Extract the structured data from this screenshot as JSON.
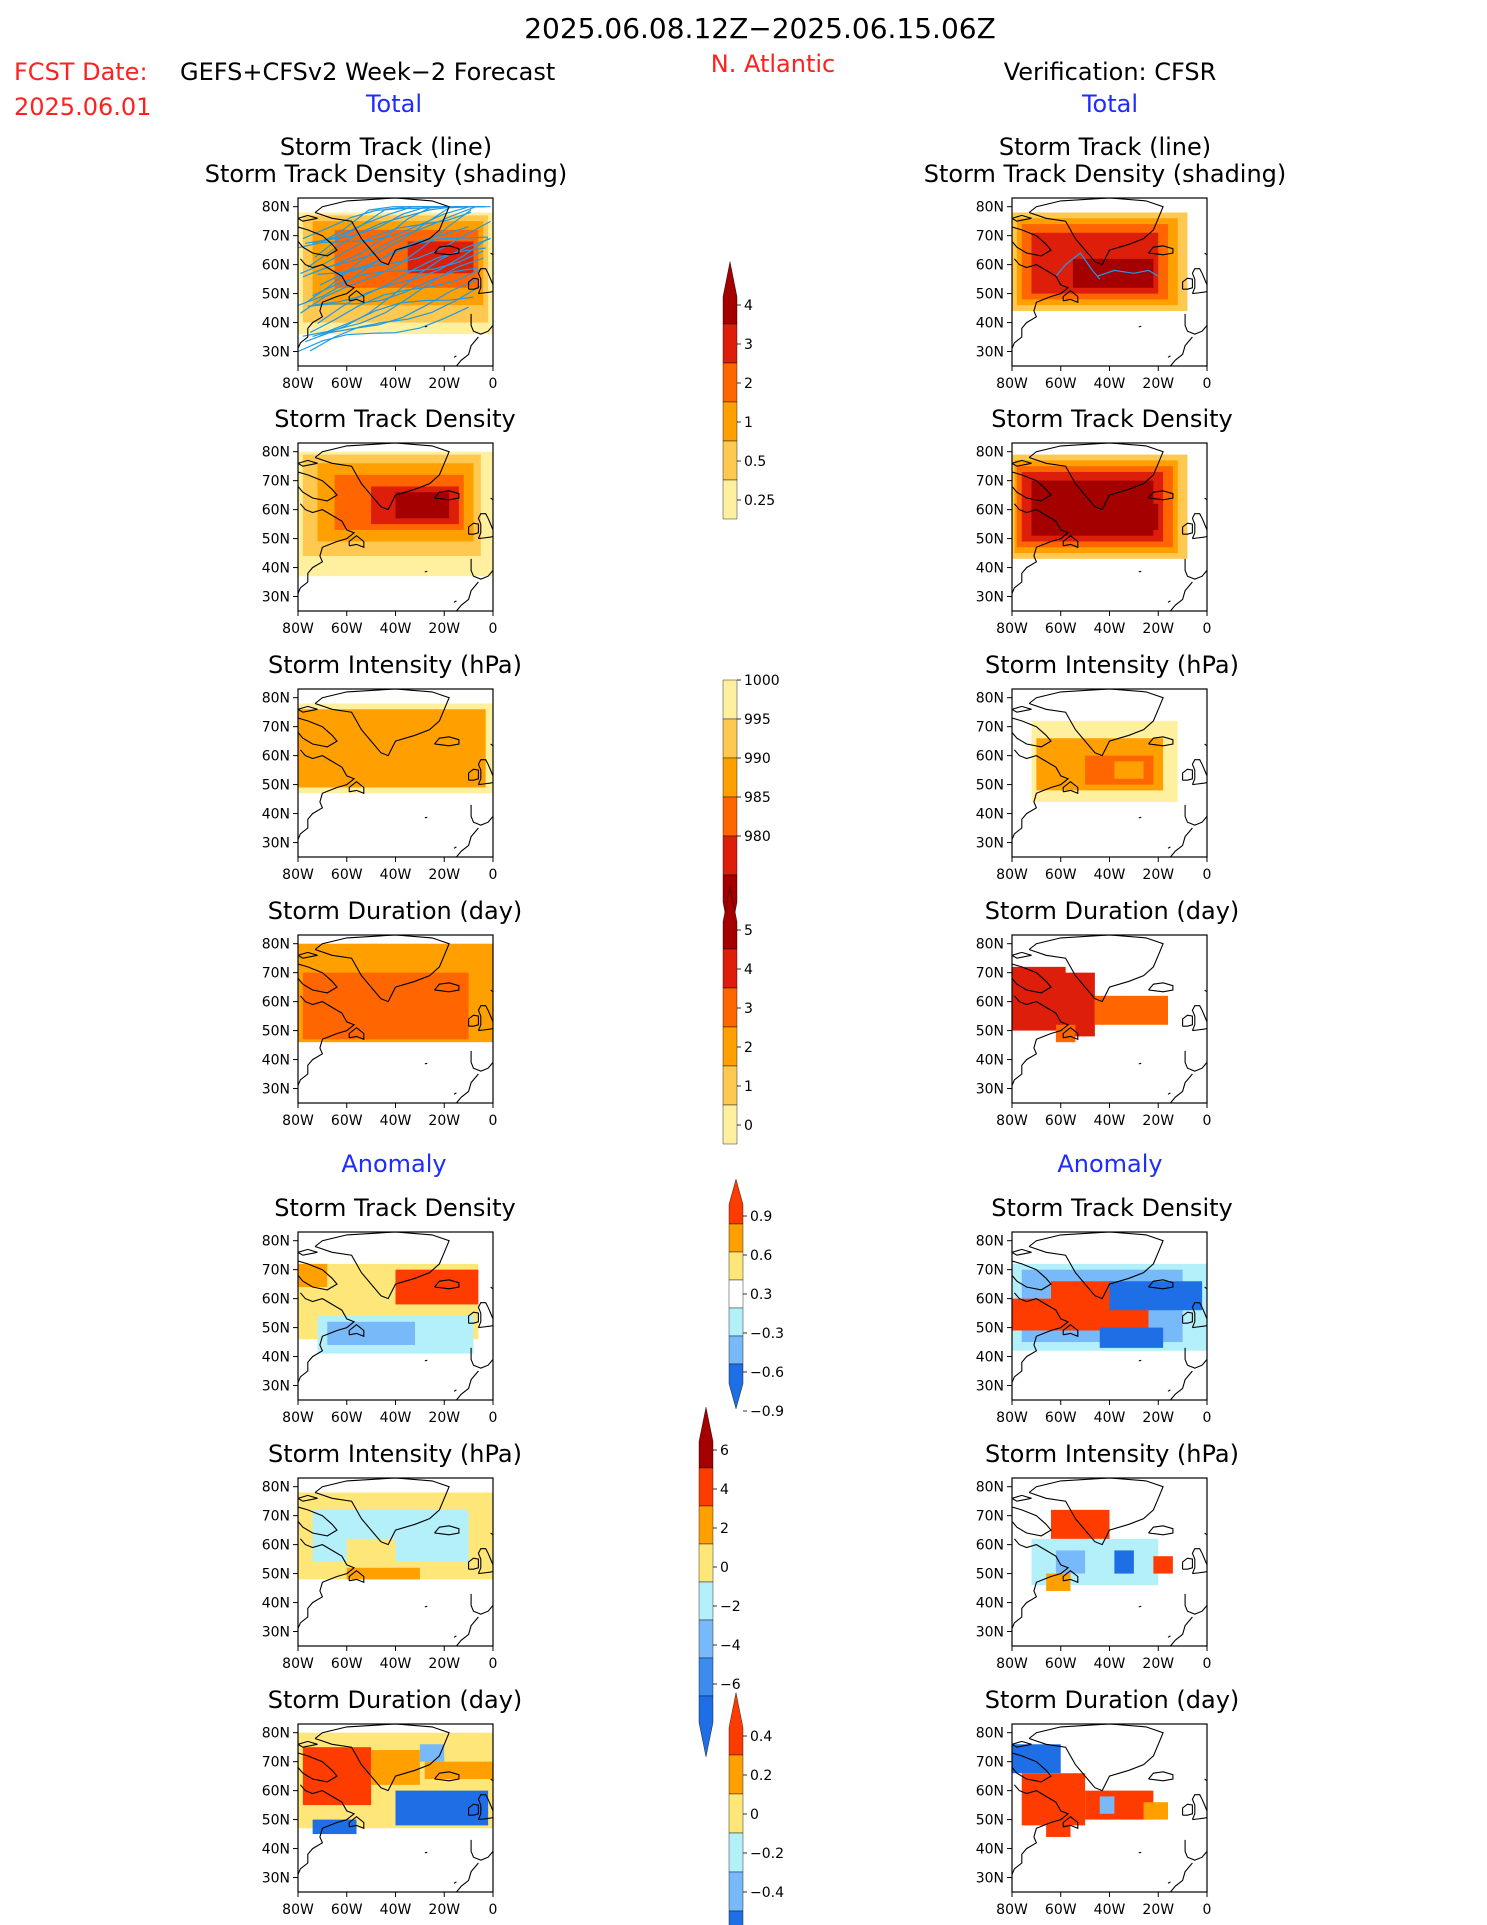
{
  "header": {
    "date_range": "2025.06.08.12Z−2025.06.15.06Z",
    "fcst_label": "FCST Date:",
    "fcst_model": "GEFS+CFSv2 Week−2 Forecast",
    "fcst_date": "2025.06.01",
    "region": "N. Atlantic",
    "verification": "Verification: CFSR"
  },
  "sections": {
    "total": "Total",
    "anomaly": "Anomaly"
  },
  "panel_titles": {
    "track_line": "Storm Track (line)",
    "track_shading": "Storm Track Density (shading)",
    "density": "Storm Track Density",
    "intensity": "Storm Intensity (hPa)",
    "duration": "Storm Duration (day)"
  },
  "axes": {
    "lat_ticks": [
      "80N",
      "70N",
      "60N",
      "50N",
      "40N",
      "30N"
    ],
    "lon_ticks": [
      "80W",
      "60W",
      "40W",
      "20W",
      "0"
    ],
    "lat_range": [
      25,
      83
    ],
    "lon_range": [
      -80,
      0
    ]
  },
  "colorbars": {
    "density": {
      "labels": [
        "4",
        "3",
        "2",
        "1",
        "0.5",
        "0.25"
      ],
      "colors": [
        "#a50000",
        "#dc1e0a",
        "#ff6600",
        "#ffa000",
        "#ffc850",
        "#fff0a0"
      ]
    },
    "intensity": {
      "labels": [
        "1000",
        "995",
        "990",
        "985",
        "980"
      ],
      "colors": [
        "#fff0a0",
        "#ffc850",
        "#ffa000",
        "#ff6600",
        "#dc1e0a",
        "#a50000"
      ]
    },
    "duration": {
      "labels": [
        "5",
        "4",
        "3",
        "2",
        "1",
        "0"
      ],
      "colors": [
        "#a50000",
        "#dc1e0a",
        "#ff6600",
        "#ffa000",
        "#ffc850",
        "#fff0a0"
      ]
    },
    "anom_density": {
      "labels": [
        "0.9",
        "0.6",
        "0.3",
        "−0.3",
        "−0.6",
        "−0.9"
      ],
      "colors": [
        "#ff3c00",
        "#ffa000",
        "#ffe678",
        "#ffffff",
        "#b4f0fa",
        "#78b9fa",
        "#1e6ee6"
      ]
    },
    "anom_intensity": {
      "labels": [
        "6",
        "4",
        "2",
        "0",
        "−2",
        "−4",
        "−6"
      ],
      "colors": [
        "#a50000",
        "#ff3c00",
        "#ffa000",
        "#ffe678",
        "#b4f0fa",
        "#78b9fa",
        "#3c8cf0",
        "#1e6ee6"
      ]
    },
    "anom_duration": {
      "labels": [
        "0.4",
        "0.2",
        "0",
        "−0.2",
        "−0.4"
      ],
      "colors": [
        "#ff3c00",
        "#ffa000",
        "#ffe678",
        "#b4f0fa",
        "#78b9fa",
        "#1e6ee6"
      ]
    }
  },
  "colors": {
    "red_text": "#ff2020",
    "blue_text": "#1e2cff",
    "track_line": "#1e9be6"
  }
}
